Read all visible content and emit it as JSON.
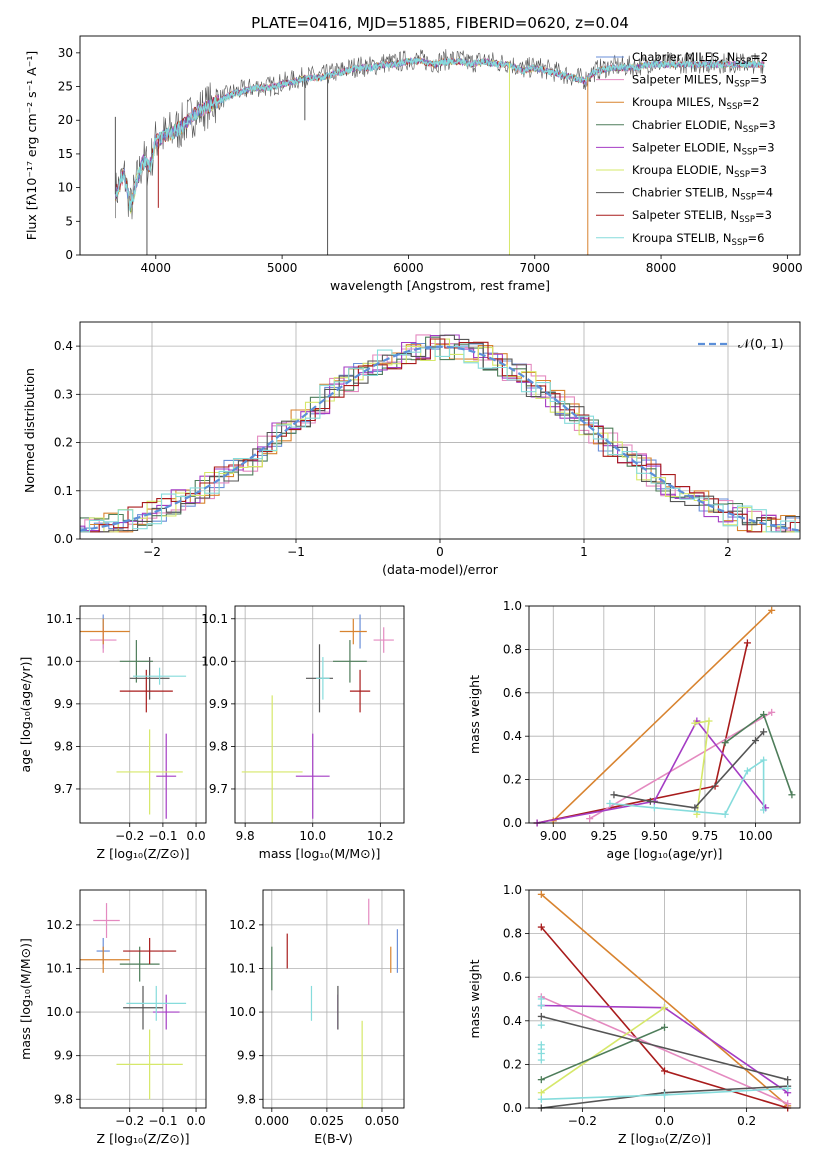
{
  "colors": {
    "CM": "#6a8fd8",
    "SM": "#e48ac0",
    "KM": "#d8832f",
    "CE": "#4e7d5a",
    "SE": "#a43cc4",
    "KE": "#d6e86a",
    "CS": "#555555",
    "SS": "#a81c1c",
    "KS": "#86dcdc"
  },
  "chart_data": [
    {
      "type": "line",
      "title": "PLATE=0416, MJD=51885, FIBERID=0620, z=0.04",
      "xlabel": "wavelength [Angstrom, rest frame]",
      "ylabel": "Flux [fλ10⁻¹⁷ erg cm⁻² s⁻¹ A⁻¹]",
      "xlim": [
        3400,
        9100
      ],
      "ylim": [
        0,
        32.5
      ],
      "xticks": [
        "4000",
        "5000",
        "6000",
        "7000",
        "8000",
        "9000"
      ],
      "yticks": [
        "0",
        "5",
        "10",
        "15",
        "20",
        "25",
        "30"
      ],
      "legend": "right",
      "series": [
        {
          "key": "CM",
          "name": "Chabrier MILES, N_SSP=2"
        },
        {
          "key": "SM",
          "name": "Salpeter MILES, N_SSP=3"
        },
        {
          "key": "KM",
          "name": "Kroupa MILES, N_SSP=2"
        },
        {
          "key": "CE",
          "name": "Chabrier ELODIE, N_SSP=3"
        },
        {
          "key": "SE",
          "name": "Salpeter ELODIE, N_SSP=3"
        },
        {
          "key": "KE",
          "name": "Kroupa ELODIE, N_SSP=3"
        },
        {
          "key": "CS",
          "name": "Chabrier STELIB, N_SSP=4"
        },
        {
          "key": "SS",
          "name": "Salpeter STELIB, N_SSP=3"
        },
        {
          "key": "KS",
          "name": "Kroupa STELIB, N_SSP=6"
        }
      ],
      "spectrum": {
        "x": [
          3680,
          3750,
          3800,
          3850,
          3900,
          3950,
          4000,
          4100,
          4200,
          4300,
          4400,
          4500,
          4600,
          4700,
          4800,
          4900,
          5000,
          5100,
          5200,
          5300,
          5400,
          5500,
          5600,
          5700,
          5800,
          5900,
          6000,
          6100,
          6200,
          6300,
          6400,
          6500,
          6600,
          6700,
          6800,
          6900,
          7000,
          7100,
          7200,
          7300,
          7400,
          7450,
          7500,
          7600,
          7700,
          7800,
          7900,
          8000,
          8200,
          8400,
          8600,
          8800
        ],
        "y": [
          9,
          12,
          7,
          11,
          14,
          13,
          17,
          18,
          19,
          21,
          22,
          23,
          24,
          24.5,
          25,
          25,
          25.5,
          26,
          26.5,
          26.5,
          27,
          27.5,
          28,
          28,
          28.5,
          28.5,
          29,
          29,
          28.5,
          29,
          29,
          28.5,
          29,
          28.5,
          28.5,
          27.5,
          28,
          27.5,
          27,
          26.5,
          26,
          27,
          27.5,
          28,
          28,
          28,
          28.5,
          28.5,
          28.5,
          28.5,
          28.5,
          28.5
        ],
        "dips": [
          {
            "x": 3930,
            "y": 0
          },
          {
            "x": 5360,
            "y": 0
          },
          {
            "x": 6800,
            "y": 0
          },
          {
            "x": 7420,
            "y": 0
          },
          {
            "x": 3680,
            "y": 20.5
          },
          {
            "x": 4020,
            "y": 7
          },
          {
            "x": 5180,
            "y": 20
          }
        ]
      }
    },
    {
      "type": "line",
      "xlabel": "(data-model)/error",
      "ylabel": "Normed distribution",
      "xlim": [
        -2.5,
        2.5
      ],
      "ylim": [
        0,
        0.45
      ],
      "xticks": [
        "−2",
        "−1",
        "0",
        "1",
        "2"
      ],
      "yticks": [
        "0.0",
        "0.1",
        "0.2",
        "0.3",
        "0.4"
      ],
      "legend": "top-right",
      "normal_label": "𝒩(0, 1)",
      "bin_width": 0.1
    },
    {
      "type": "scatter",
      "xlabel": "Z [log₁₀(Z/Z⊙)]",
      "ylabel": "age  [log₁₀(age/yr)]",
      "xlim": [
        -0.35,
        0.03
      ],
      "ylim": [
        9.62,
        10.13
      ],
      "xticks": [
        "−0.2",
        "−0.1",
        "0.0"
      ],
      "yticks": [
        "9.7",
        "9.8",
        "9.9",
        "10.0",
        "10.1"
      ],
      "points": [
        {
          "key": "CM",
          "x": -0.28,
          "xe": 0.0,
          "y": 10.07,
          "ye": 0.04
        },
        {
          "key": "SM",
          "x": -0.28,
          "xe": 0.04,
          "y": 10.05,
          "ye": 0.03
        },
        {
          "key": "KM",
          "x": -0.28,
          "xe": 0.08,
          "y": 10.07,
          "ye": 0.03
        },
        {
          "key": "CE",
          "x": -0.18,
          "xe": 0.05,
          "y": 10.0,
          "ye": 0.05
        },
        {
          "key": "SE",
          "x": -0.09,
          "xe": 0.03,
          "y": 9.73,
          "ye": 0.1
        },
        {
          "key": "KE",
          "x": -0.14,
          "xe": 0.1,
          "y": 9.74,
          "ye": 0.1
        },
        {
          "key": "CS",
          "x": -0.14,
          "xe": 0.06,
          "y": 9.96,
          "ye": 0.05
        },
        {
          "key": "SS",
          "x": -0.15,
          "xe": 0.08,
          "y": 9.93,
          "ye": 0.05
        },
        {
          "key": "KS",
          "x": -0.11,
          "xe": 0.08,
          "y": 9.965,
          "ye": 0.02
        }
      ]
    },
    {
      "type": "scatter",
      "xlabel": "mass [log₁₀(M/M⊙)]",
      "ylabel": "",
      "xlim": [
        9.77,
        10.27
      ],
      "ylim": [
        9.62,
        10.13
      ],
      "xticks": [
        "9.8",
        "10.0",
        "10.2"
      ],
      "yticks": [
        "9.7",
        "9.8",
        "9.9",
        "10.0",
        "10.1"
      ],
      "points": [
        {
          "key": "CM",
          "x": 10.14,
          "xe": 0.0,
          "y": 10.07,
          "ye": 0.04
        },
        {
          "key": "SM",
          "x": 10.21,
          "xe": 0.03,
          "y": 10.05,
          "ye": 0.03
        },
        {
          "key": "KM",
          "x": 10.12,
          "xe": 0.04,
          "y": 10.07,
          "ye": 0.03
        },
        {
          "key": "CE",
          "x": 10.11,
          "xe": 0.05,
          "y": 10.0,
          "ye": 0.05
        },
        {
          "key": "SE",
          "x": 10.0,
          "xe": 0.05,
          "y": 9.73,
          "ye": 0.1
        },
        {
          "key": "KE",
          "x": 9.88,
          "xe": 0.09,
          "y": 9.74,
          "ye": 0.18
        },
        {
          "key": "CS",
          "x": 10.02,
          "xe": 0.04,
          "y": 9.96,
          "ye": 0.08
        },
        {
          "key": "SS",
          "x": 10.14,
          "xe": 0.03,
          "y": 9.93,
          "ye": 0.05
        },
        {
          "key": "KS",
          "x": 10.03,
          "xe": 0.02,
          "y": 9.96,
          "ye": 0.05
        }
      ]
    },
    {
      "type": "line",
      "xlabel": "age  [log₁₀(age/yr)]",
      "ylabel": "mass weight",
      "xlim": [
        8.88,
        10.22
      ],
      "ylim": [
        0,
        1
      ],
      "xticks": [
        "9.00",
        "9.25",
        "9.50",
        "9.75",
        "10.00"
      ],
      "yticks": [
        "0.0",
        "0.2",
        "0.4",
        "0.6",
        "0.8",
        "1.0"
      ],
      "lines": [
        {
          "key": "KM",
          "x": [
            9.0,
            10.08
          ],
          "y": [
            0.01,
            0.98
          ]
        },
        {
          "key": "SS",
          "x": [
            8.92,
            9.8,
            9.96
          ],
          "y": [
            0.0,
            0.17,
            0.83
          ]
        },
        {
          "key": "SM",
          "x": [
            9.18,
            10.08
          ],
          "y": [
            0.02,
            0.51
          ]
        },
        {
          "key": "SE",
          "x": [
            8.92,
            9.5,
            9.71,
            10.05
          ],
          "y": [
            0.0,
            0.1,
            0.47,
            0.07
          ]
        },
        {
          "key": "KE",
          "x": [
            9.7,
            9.77,
            9.71
          ],
          "y": [
            0.46,
            0.47,
            0.04
          ]
        },
        {
          "key": "CE",
          "x": [
            9.85,
            10.04,
            10.18
          ],
          "y": [
            0.37,
            0.5,
            0.13
          ]
        },
        {
          "key": "CS",
          "x": [
            9.3,
            9.48,
            9.7,
            10.0,
            10.04
          ],
          "y": [
            0.13,
            0.1,
            0.07,
            0.38,
            0.42
          ]
        },
        {
          "key": "KS",
          "x": [
            9.28,
            9.5,
            9.85,
            9.96,
            10.04,
            10.04
          ],
          "y": [
            0.09,
            0.07,
            0.04,
            0.24,
            0.29,
            0.06
          ]
        }
      ]
    },
    {
      "type": "scatter",
      "xlabel": "Z [log₁₀(Z/Z⊙)]",
      "ylabel": "mass [log₁₀(M/M⊙)]",
      "xlim": [
        -0.35,
        0.03
      ],
      "ylim": [
        9.78,
        10.28
      ],
      "xticks": [
        "−0.2",
        "−0.1",
        "0.0"
      ],
      "yticks": [
        "9.8",
        "9.9",
        "10.0",
        "10.1",
        "10.2"
      ],
      "points": [
        {
          "key": "CM",
          "x": -0.28,
          "xe": 0.02,
          "y": 10.14,
          "ye": 0.03
        },
        {
          "key": "SM",
          "x": -0.27,
          "xe": 0.04,
          "y": 10.21,
          "ye": 0.04
        },
        {
          "key": "KM",
          "x": -0.28,
          "xe": 0.08,
          "y": 10.12,
          "ye": 0.03
        },
        {
          "key": "CE",
          "x": -0.17,
          "xe": 0.06,
          "y": 10.11,
          "ye": 0.04
        },
        {
          "key": "SE",
          "x": -0.09,
          "xe": 0.04,
          "y": 10.0,
          "ye": 0.04
        },
        {
          "key": "KE",
          "x": -0.14,
          "xe": 0.1,
          "y": 9.88,
          "ye": 0.08
        },
        {
          "key": "CS",
          "x": -0.16,
          "xe": 0.06,
          "y": 10.01,
          "ye": 0.05
        },
        {
          "key": "SS",
          "x": -0.14,
          "xe": 0.08,
          "y": 10.14,
          "ye": 0.03
        },
        {
          "key": "KS",
          "x": -0.12,
          "xe": 0.09,
          "y": 10.02,
          "ye": 0.04
        }
      ]
    },
    {
      "type": "scatter",
      "xlabel": "E(B-V)",
      "ylabel": "",
      "xlim": [
        -0.004,
        0.06
      ],
      "ylim": [
        9.78,
        10.28
      ],
      "xticks": [
        "0.000",
        "0.025",
        "0.050"
      ],
      "yticks": [
        "9.8",
        "9.9",
        "10.0",
        "10.1",
        "10.2"
      ],
      "points": [
        {
          "key": "CM",
          "x": 0.057,
          "xe": 0,
          "y": 10.14,
          "ye": 0.05
        },
        {
          "key": "SM",
          "x": 0.044,
          "xe": 0,
          "y": 10.23,
          "ye": 0.03
        },
        {
          "key": "KM",
          "x": 0.054,
          "xe": 0,
          "y": 10.12,
          "ye": 0.03
        },
        {
          "key": "CE",
          "x": 0.0,
          "xe": 0,
          "y": 10.1,
          "ye": 0.05
        },
        {
          "key": "SE",
          "x": 0.03,
          "xe": 0,
          "y": 10.0,
          "ye": 0.04
        },
        {
          "key": "KE",
          "x": 0.041,
          "xe": 0,
          "y": 9.88,
          "ye": 0.1
        },
        {
          "key": "CS",
          "x": 0.03,
          "xe": 0,
          "y": 10.01,
          "ye": 0.05
        },
        {
          "key": "SS",
          "x": 0.007,
          "xe": 0,
          "y": 10.14,
          "ye": 0.04
        },
        {
          "key": "KS",
          "x": 0.018,
          "xe": 0,
          "y": 10.02,
          "ye": 0.04
        }
      ]
    },
    {
      "type": "line",
      "xlabel": "Z [log₁₀(Z/Z⊙)]",
      "ylabel": "mass weight",
      "xlim": [
        -0.33,
        0.33
      ],
      "ylim": [
        0,
        1
      ],
      "xticks": [
        "−0.2",
        "0.0",
        "0.2"
      ],
      "yticks": [
        "0.0",
        "0.2",
        "0.4",
        "0.6",
        "0.8",
        "1.0"
      ],
      "lines": [
        {
          "key": "KM",
          "x": [
            -0.3,
            0.3
          ],
          "y": [
            0.98,
            0.01
          ]
        },
        {
          "key": "SS",
          "x": [
            -0.3,
            0.0,
            0.3
          ],
          "y": [
            0.83,
            0.17,
            0.0
          ]
        },
        {
          "key": "SM",
          "x": [
            -0.3,
            0.3
          ],
          "y": [
            0.51,
            0.02
          ]
        },
        {
          "key": "SE",
          "x": [
            -0.3,
            0.0,
            0.3
          ],
          "y": [
            0.47,
            0.46,
            0.07
          ]
        },
        {
          "key": "KE",
          "x": [
            -0.3,
            0.0
          ],
          "y": [
            0.07,
            0.46
          ]
        },
        {
          "key": "CE",
          "x": [
            -0.3,
            0.0
          ],
          "y": [
            0.13,
            0.37
          ]
        },
        {
          "key": "CS",
          "x": [
            -0.3,
            0.3
          ],
          "y": [
            0.42,
            0.13
          ]
        },
        {
          "key": "CS",
          "x": [
            -0.3,
            0.0,
            0.3
          ],
          "y": [
            0.0,
            0.07,
            0.1
          ]
        },
        {
          "key": "KS",
          "x": [
            -0.3,
            0.0,
            0.3
          ],
          "y": [
            0.04,
            0.06,
            0.09
          ]
        }
      ],
      "cluster": {
        "x": -0.3,
        "y": [
          0.22,
          0.25,
          0.27,
          0.29,
          0.38,
          0.47,
          0.5
        ]
      }
    }
  ]
}
